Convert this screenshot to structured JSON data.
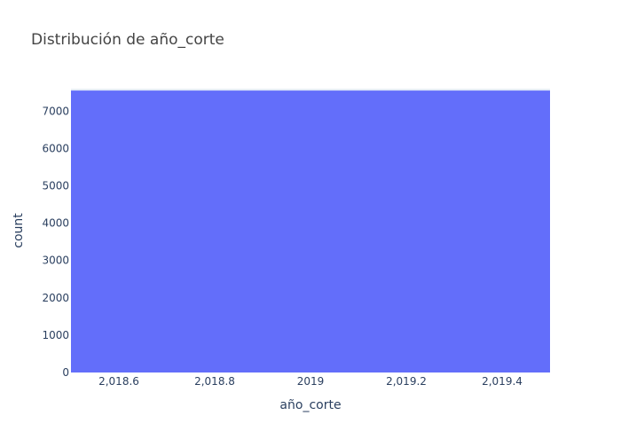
{
  "chart_data": {
    "type": "bar",
    "title": "Distribución de año_corte",
    "xlabel": "año_corte",
    "ylabel": "count",
    "x_bins": [
      {
        "start": 2018.5,
        "end": 2019.5,
        "count": 7550
      }
    ],
    "xlim": [
      2018.5,
      2019.5
    ],
    "ylim": [
      0,
      7600
    ],
    "x_ticks": [
      2018.6,
      2018.8,
      2019,
      2019.2,
      2019.4
    ],
    "x_tick_labels": [
      "2,018.6",
      "2,018.8",
      "2019",
      "2,019.2",
      "2,019.4"
    ],
    "y_ticks": [
      0,
      1000,
      2000,
      3000,
      4000,
      5000,
      6000,
      7000
    ],
    "y_tick_labels": [
      "0",
      "1000",
      "2000",
      "3000",
      "4000",
      "5000",
      "6000",
      "7000"
    ],
    "grid": true,
    "legend": false,
    "colors": {
      "bar": "#636efa",
      "plot_bg": "#e5ecf6",
      "grid": "#ffffff",
      "text": "#2a3f5f",
      "title": "#444444"
    }
  }
}
